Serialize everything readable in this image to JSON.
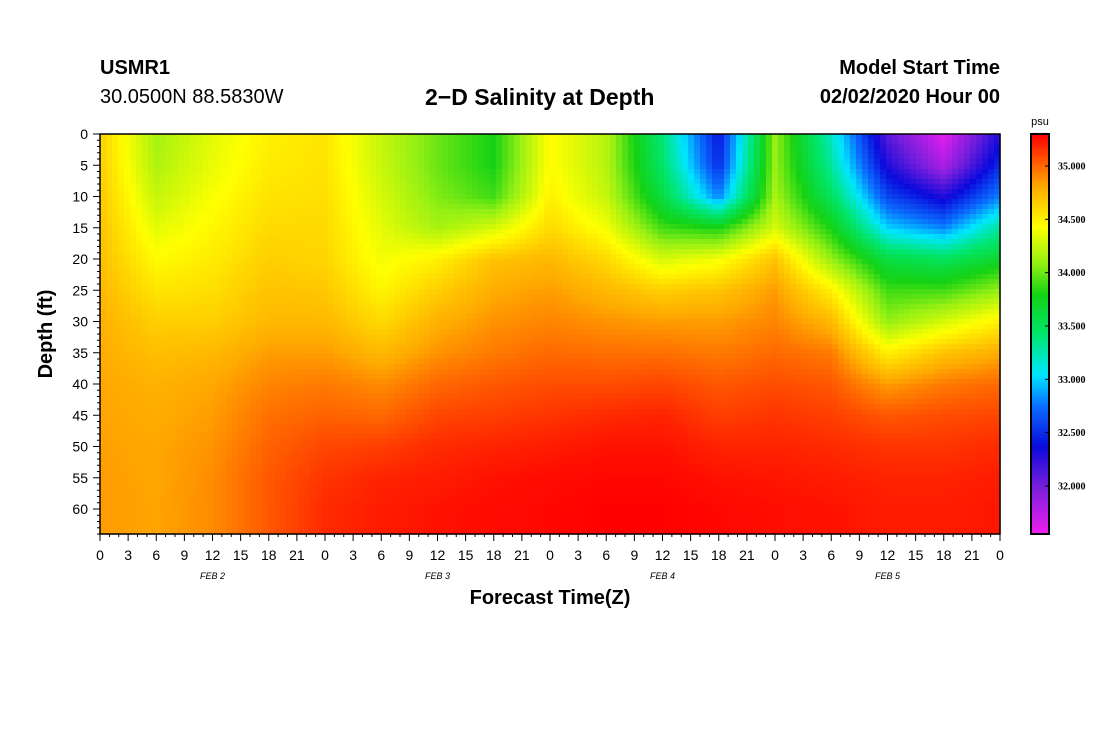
{
  "header": {
    "station": "USMR1",
    "coordinates": "30.0500N 88.5830W",
    "title": "2−D Salinity at Depth",
    "model_start_label": "Model Start Time",
    "model_start_value": "02/02/2020 Hour 00"
  },
  "chart_data": {
    "type": "heatmap",
    "title": "2−D Salinity at Depth",
    "xlabel": "Forecast Time(Z)",
    "ylabel": "Depth (ft)",
    "x_tick_labels": [
      "0",
      "3",
      "6",
      "9",
      "12",
      "15",
      "18",
      "21",
      "0",
      "3",
      "6",
      "9",
      "12",
      "15",
      "18",
      "21",
      "0",
      "3",
      "6",
      "9",
      "12",
      "15",
      "18",
      "21",
      "0",
      "3",
      "6",
      "9",
      "12",
      "15",
      "18",
      "21",
      "0"
    ],
    "x_range_hours": [
      0,
      96
    ],
    "date_labels": [
      {
        "label": "FEB 2",
        "hour": 12
      },
      {
        "label": "FEB 3",
        "hour": 36
      },
      {
        "label": "FEB 4",
        "hour": 60
      },
      {
        "label": "FEB 5",
        "hour": 84
      }
    ],
    "y_ticks": [
      0,
      5,
      10,
      15,
      20,
      25,
      30,
      35,
      40,
      45,
      50,
      55,
      60
    ],
    "y_range": [
      0,
      64
    ],
    "y_inverted": true,
    "colorbar": {
      "unit": "psu",
      "range": [
        31.55,
        35.3
      ],
      "ticks": [
        32.0,
        32.5,
        33.0,
        33.5,
        34.0,
        34.5,
        35.0
      ],
      "tick_labels": [
        "32.000",
        "32.500",
        "33.000",
        "33.500",
        "34.000",
        "34.500",
        "35.000"
      ]
    },
    "hours": [
      0,
      6,
      12,
      18,
      24,
      30,
      36,
      42,
      48,
      54,
      60,
      66,
      72,
      78,
      84,
      90,
      96
    ],
    "depths": [
      0,
      5,
      10,
      15,
      20,
      25,
      30,
      35,
      40,
      45,
      50,
      55,
      60,
      64
    ],
    "values": [
      [
        34.65,
        34.15,
        34.35,
        34.5,
        34.55,
        34.25,
        34.0,
        33.8,
        34.45,
        34.2,
        33.4,
        32.4,
        34.1,
        33.2,
        32.1,
        31.6,
        32.3
      ],
      [
        34.65,
        34.18,
        34.37,
        34.52,
        34.56,
        34.26,
        34.0,
        33.8,
        34.45,
        34.2,
        33.45,
        32.5,
        34.1,
        33.3,
        32.3,
        31.8,
        32.5
      ],
      [
        34.68,
        34.25,
        34.42,
        34.56,
        34.58,
        34.3,
        34.05,
        33.9,
        34.5,
        34.25,
        33.6,
        32.8,
        34.15,
        33.5,
        32.6,
        32.3,
        32.8
      ],
      [
        34.7,
        34.35,
        34.47,
        34.6,
        34.6,
        34.35,
        34.15,
        34.3,
        34.6,
        34.4,
        33.9,
        33.8,
        34.3,
        33.8,
        33.0,
        32.8,
        33.3
      ],
      [
        34.72,
        34.45,
        34.52,
        34.65,
        34.62,
        34.4,
        34.5,
        34.7,
        34.75,
        34.6,
        34.3,
        34.4,
        34.7,
        34.1,
        33.6,
        33.5,
        33.7
      ],
      [
        34.75,
        34.55,
        34.58,
        34.7,
        34.68,
        34.48,
        34.65,
        34.8,
        34.85,
        34.75,
        34.65,
        34.7,
        34.85,
        34.5,
        33.9,
        33.9,
        34.1
      ],
      [
        34.78,
        34.65,
        34.65,
        34.75,
        34.75,
        34.6,
        34.78,
        34.88,
        34.92,
        34.88,
        34.85,
        34.85,
        34.92,
        34.75,
        34.1,
        34.3,
        34.5
      ],
      [
        34.8,
        34.72,
        34.75,
        34.85,
        34.85,
        34.75,
        34.88,
        34.95,
        35.0,
        34.98,
        34.98,
        34.95,
        35.0,
        34.95,
        34.5,
        34.7,
        34.8
      ],
      [
        34.82,
        34.78,
        34.82,
        34.92,
        34.95,
        34.9,
        35.0,
        35.05,
        35.08,
        35.08,
        35.1,
        35.05,
        35.08,
        35.05,
        34.85,
        34.95,
        35.0
      ],
      [
        34.83,
        34.8,
        34.85,
        34.98,
        35.02,
        35.0,
        35.1,
        35.12,
        35.15,
        35.18,
        35.2,
        35.12,
        35.15,
        35.12,
        35.05,
        35.08,
        35.1
      ],
      [
        34.84,
        34.82,
        34.88,
        35.02,
        35.1,
        35.12,
        35.18,
        35.2,
        35.22,
        35.25,
        35.25,
        35.2,
        35.2,
        35.18,
        35.15,
        35.15,
        35.18
      ],
      [
        34.85,
        34.82,
        34.9,
        35.05,
        35.15,
        35.2,
        35.22,
        35.25,
        35.27,
        35.28,
        35.28,
        35.25,
        35.24,
        35.22,
        35.2,
        35.2,
        35.22
      ],
      [
        34.85,
        34.83,
        34.9,
        35.05,
        35.18,
        35.22,
        35.25,
        35.27,
        35.28,
        35.3,
        35.3,
        35.28,
        35.26,
        35.25,
        35.22,
        35.22,
        35.24
      ],
      [
        34.85,
        34.83,
        34.9,
        35.05,
        35.18,
        35.22,
        35.25,
        35.27,
        35.28,
        35.3,
        35.3,
        35.28,
        35.26,
        35.25,
        35.22,
        35.22,
        35.24
      ]
    ],
    "grid": false,
    "legend": "colorbar-right"
  }
}
